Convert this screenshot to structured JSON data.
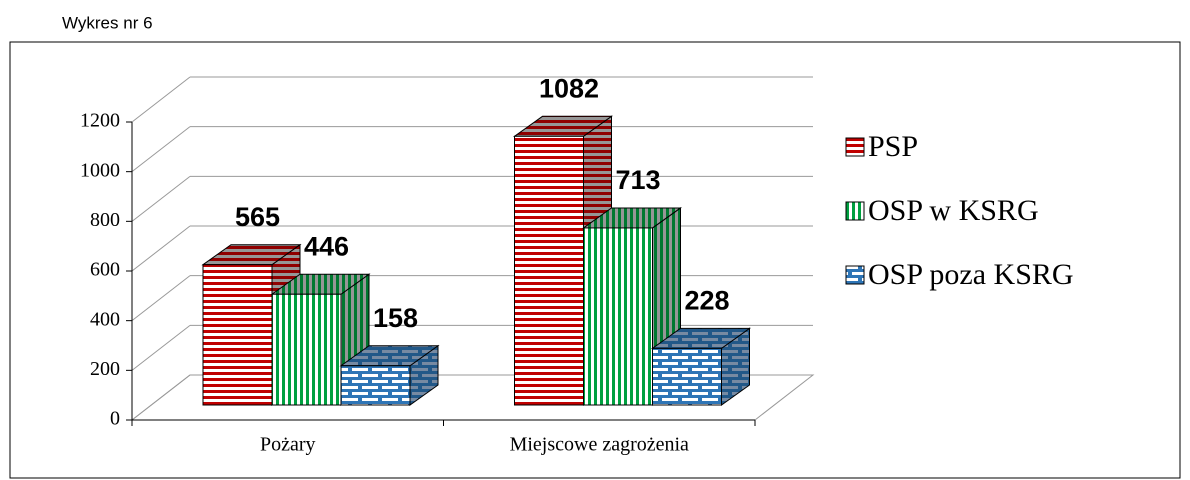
{
  "chart_data": {
    "type": "bar3d",
    "title": "Wykres nr 6",
    "categories": [
      "Pożary",
      "Miejscowe zagrożenia"
    ],
    "series": [
      {
        "name": "PSP",
        "color": "#c00000",
        "pattern": "horizontal",
        "values": [
          565,
          1082
        ]
      },
      {
        "name": "OSP w KSRG",
        "color": "#00a040",
        "pattern": "vertical",
        "values": [
          446,
          713
        ]
      },
      {
        "name": "OSP poza KSRG",
        "color": "#2e75b6",
        "pattern": "brick",
        "values": [
          158,
          228
        ]
      }
    ],
    "ylim": [
      0,
      1200
    ],
    "yticks": [
      0,
      200,
      400,
      600,
      800,
      1000,
      1200
    ],
    "grid": true,
    "legend": "right"
  }
}
